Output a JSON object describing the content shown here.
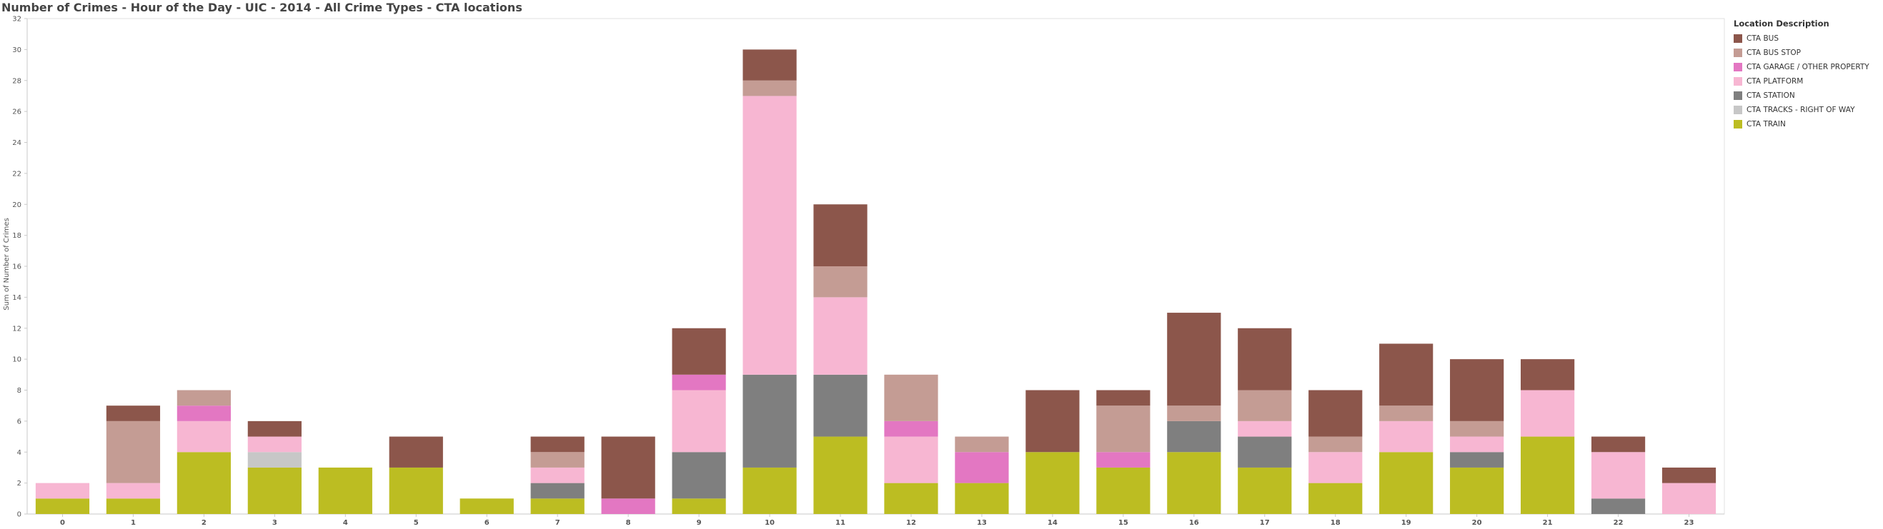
{
  "chart_data": {
    "type": "bar",
    "stacked": true,
    "title": "Number of Crimes - Hour of the Day - UIC - 2014 - All Crime Types - CTA locations",
    "xlabel": "",
    "ylabel": "Sum of Number of Crimes",
    "ylim": [
      0,
      32
    ],
    "yticks": [
      0,
      2,
      4,
      6,
      8,
      10,
      12,
      14,
      16,
      18,
      20,
      22,
      24,
      26,
      28,
      30,
      32
    ],
    "grid": false,
    "legend_position": "right",
    "legend_title": "Location Description",
    "categories": [
      "0",
      "1",
      "2",
      "3",
      "4",
      "5",
      "6",
      "7",
      "8",
      "9",
      "10",
      "11",
      "12",
      "13",
      "14",
      "15",
      "16",
      "17",
      "18",
      "19",
      "20",
      "21",
      "22",
      "23"
    ],
    "series": [
      {
        "name": "CTA TRAIN",
        "color": "#bcbd22",
        "values": [
          1,
          1,
          4,
          3,
          3,
          3,
          1,
          1,
          0,
          1,
          3,
          5,
          2,
          2,
          4,
          3,
          4,
          3,
          2,
          4,
          3,
          5,
          0,
          0
        ]
      },
      {
        "name": "CTA TRACKS - RIGHT OF WAY",
        "color": "#c7c7c7",
        "values": [
          0,
          0,
          0,
          1,
          0,
          0,
          0,
          0,
          0,
          0,
          0,
          0,
          0,
          0,
          0,
          0,
          0,
          0,
          0,
          0,
          0,
          0,
          0,
          0
        ]
      },
      {
        "name": "CTA STATION",
        "color": "#7f7f7f",
        "values": [
          0,
          0,
          0,
          0,
          0,
          0,
          0,
          1,
          0,
          3,
          6,
          4,
          0,
          0,
          0,
          0,
          2,
          2,
          0,
          0,
          1,
          0,
          1,
          0
        ]
      },
      {
        "name": "CTA PLATFORM",
        "color": "#f7b6d2",
        "values": [
          1,
          1,
          2,
          1,
          0,
          0,
          0,
          1,
          0,
          4,
          18,
          5,
          3,
          0,
          0,
          0,
          0,
          1,
          2,
          2,
          1,
          3,
          3,
          2
        ]
      },
      {
        "name": "CTA GARAGE / OTHER PROPERTY",
        "color": "#e377c2",
        "values": [
          0,
          0,
          1,
          0,
          0,
          0,
          0,
          0,
          1,
          1,
          0,
          0,
          1,
          2,
          0,
          1,
          0,
          0,
          0,
          0,
          0,
          0,
          0,
          0
        ]
      },
      {
        "name": "CTA BUS STOP",
        "color": "#c49c94",
        "values": [
          0,
          4,
          1,
          0,
          0,
          0,
          0,
          1,
          0,
          0,
          1,
          2,
          3,
          1,
          0,
          3,
          1,
          2,
          1,
          1,
          1,
          0,
          0,
          0
        ]
      },
      {
        "name": "CTA BUS",
        "color": "#8c564b",
        "values": [
          0,
          1,
          0,
          1,
          0,
          2,
          0,
          1,
          4,
          3,
          2,
          4,
          0,
          0,
          4,
          1,
          6,
          4,
          3,
          4,
          4,
          2,
          1,
          1
        ]
      }
    ]
  },
  "legend": {
    "title": "Location Description",
    "items": [
      {
        "label": "CTA BUS",
        "color": "#8c564b"
      },
      {
        "label": "CTA BUS STOP",
        "color": "#c49c94"
      },
      {
        "label": "CTA GARAGE / OTHER PROPERTY",
        "color": "#e377c2"
      },
      {
        "label": "CTA PLATFORM",
        "color": "#f7b6d2"
      },
      {
        "label": "CTA STATION",
        "color": "#7f7f7f"
      },
      {
        "label": "CTA TRACKS - RIGHT OF WAY",
        "color": "#c7c7c7"
      },
      {
        "label": "CTA TRAIN",
        "color": "#bcbd22"
      }
    ]
  }
}
